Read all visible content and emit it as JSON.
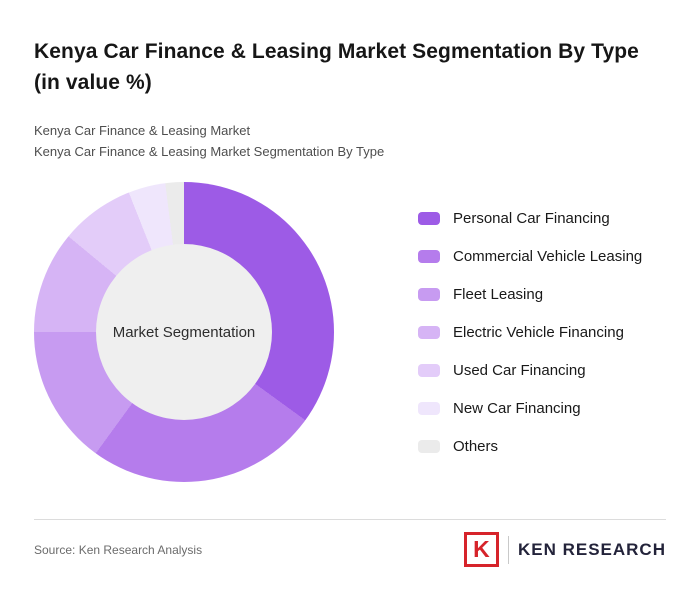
{
  "header": {
    "title": "Kenya Car Finance & Leasing Market Segmentation By Type (in value %)",
    "subtitle_line1": "Kenya Car Finance & Leasing Market",
    "subtitle_line2": "Kenya Car Finance & Leasing Market Segmentation By Type"
  },
  "chart_data": {
    "type": "pie",
    "subtype": "donut",
    "title": "Kenya Car Finance & Leasing Market Segmentation By Type (in value %)",
    "center_label": "Market Segmentation",
    "center_fill": "#efefef",
    "legend_position": "right",
    "start_angle_deg": 0,
    "direction": "clockwise",
    "units": "percent of value",
    "values_estimated_from_arc_angles": true,
    "segments": [
      {
        "label": "Personal Car Financing",
        "value": 35,
        "color": "#9d5be6"
      },
      {
        "label": "Commercial Vehicle Leasing",
        "value": 25,
        "color": "#b57cec"
      },
      {
        "label": "Fleet Leasing",
        "value": 15,
        "color": "#c79bf1"
      },
      {
        "label": "Electric Vehicle Financing",
        "value": 11,
        "color": "#d6b4f5"
      },
      {
        "label": "Used Car Financing",
        "value": 8,
        "color": "#e3ccf9"
      },
      {
        "label": "New Car Financing",
        "value": 4,
        "color": "#efe6fc"
      },
      {
        "label": "Others",
        "value": 2,
        "color": "#ebebeb"
      }
    ]
  },
  "footer": {
    "source": "Source: Ken Research Analysis"
  },
  "logo": {
    "mark_letter": "K",
    "name": "KEN RESEARCH",
    "accent_color": "#d6232a"
  }
}
